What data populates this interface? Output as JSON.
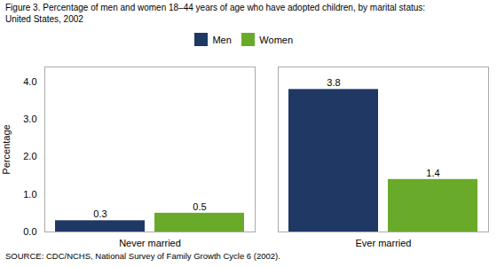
{
  "chart_data": {
    "type": "bar",
    "title": "Figure 3. Percentage of men and women 18–44 years of age who have adopted children, by marital status:",
    "subtitle": "United States, 2002",
    "source": "SOURCE: CDC/NCHS, National Survey of Family Growth Cycle 6 (2002).",
    "categories": [
      "Never married",
      "Ever married"
    ],
    "series": [
      {
        "name": "Men",
        "color": "#1f3864",
        "values": [
          0.3,
          3.8
        ]
      },
      {
        "name": "Women",
        "color": "#6aaa2a",
        "values": [
          0.5,
          1.4
        ]
      }
    ],
    "ylabel": "Percentage",
    "ylim": [
      0,
      4.4
    ],
    "yticks": [
      0,
      1,
      2,
      3,
      4
    ],
    "grid": false,
    "legend": "top",
    "data_labels": true
  }
}
